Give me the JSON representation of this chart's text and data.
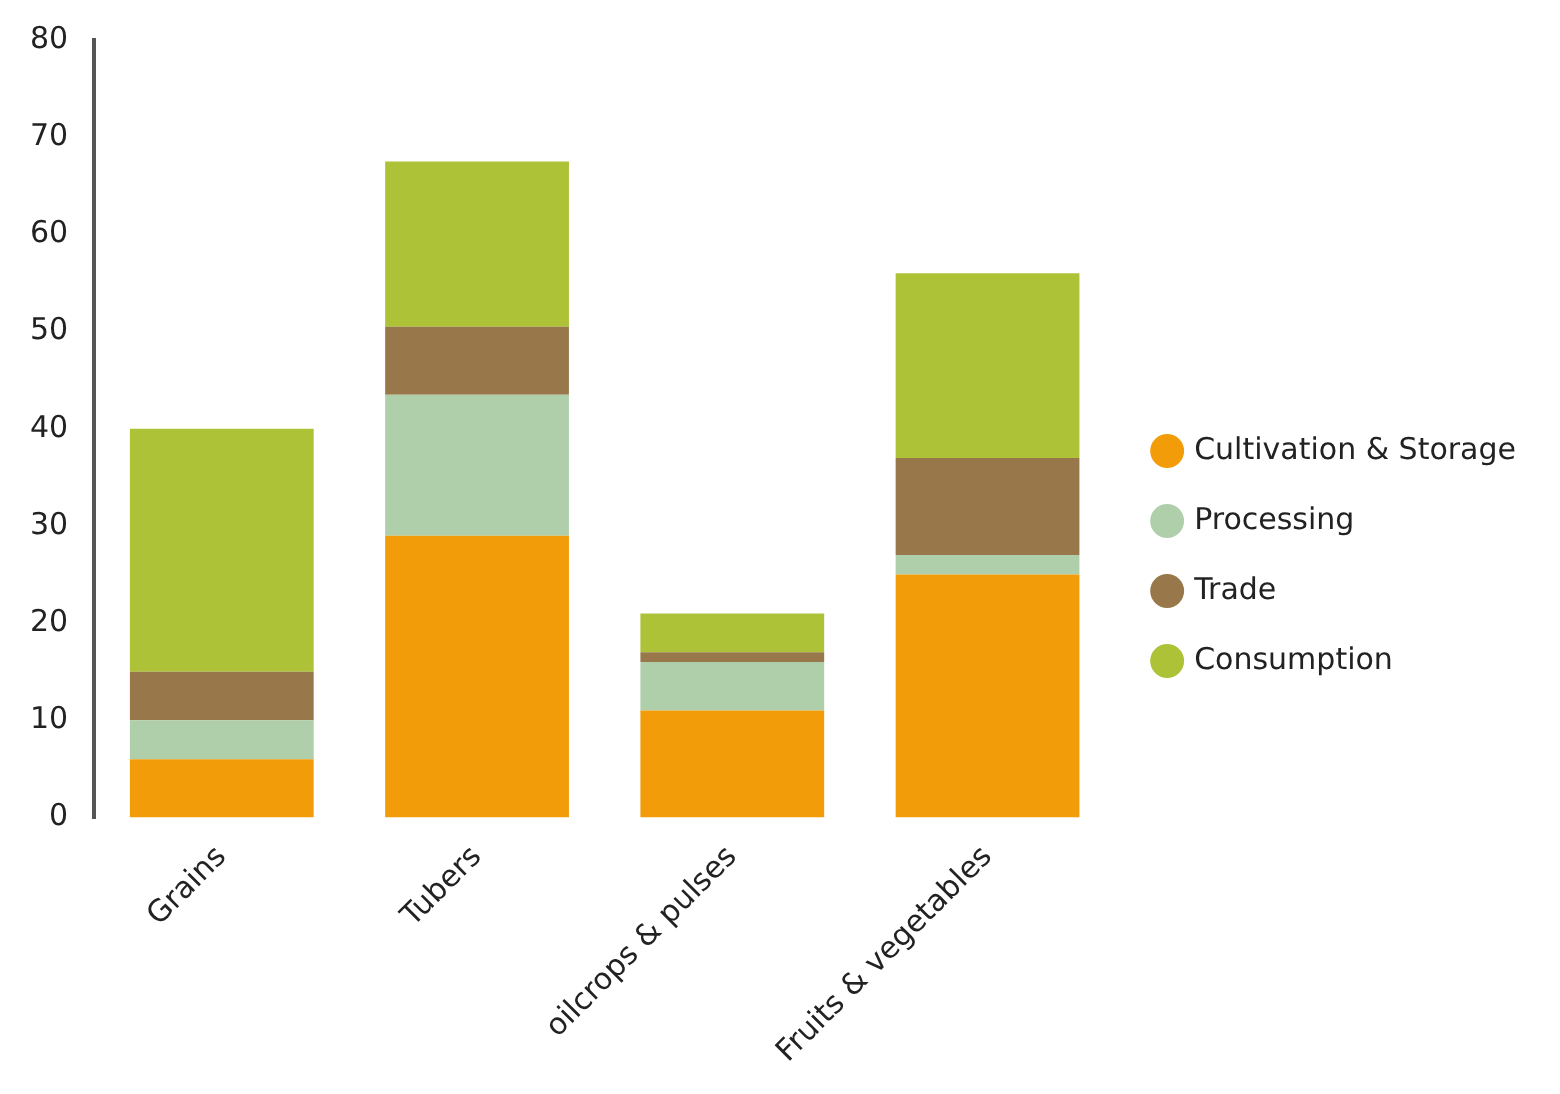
{
  "chart_data": {
    "type": "bar",
    "stacked": true,
    "categories": [
      "Grains",
      "Tubers",
      "oilcrops & pulses",
      "Fruits & vegetables"
    ],
    "series": [
      {
        "name": "Cultivation & Storage",
        "color": "#f39c0a",
        "values": [
          6,
          29,
          11,
          25
        ]
      },
      {
        "name": "Processing",
        "color": "#aecfaa",
        "values": [
          4,
          14.5,
          5,
          2
        ]
      },
      {
        "name": "Trade",
        "color": "#98784a",
        "values": [
          5,
          7,
          1,
          10
        ]
      },
      {
        "name": "Consumption",
        "color": "#adc236",
        "values": [
          25,
          17,
          4,
          19
        ]
      }
    ],
    "ylim": [
      0,
      80
    ],
    "yticks": [
      0,
      10,
      20,
      30,
      40,
      50,
      60,
      70,
      80
    ],
    "grid": false,
    "legend": "right"
  }
}
